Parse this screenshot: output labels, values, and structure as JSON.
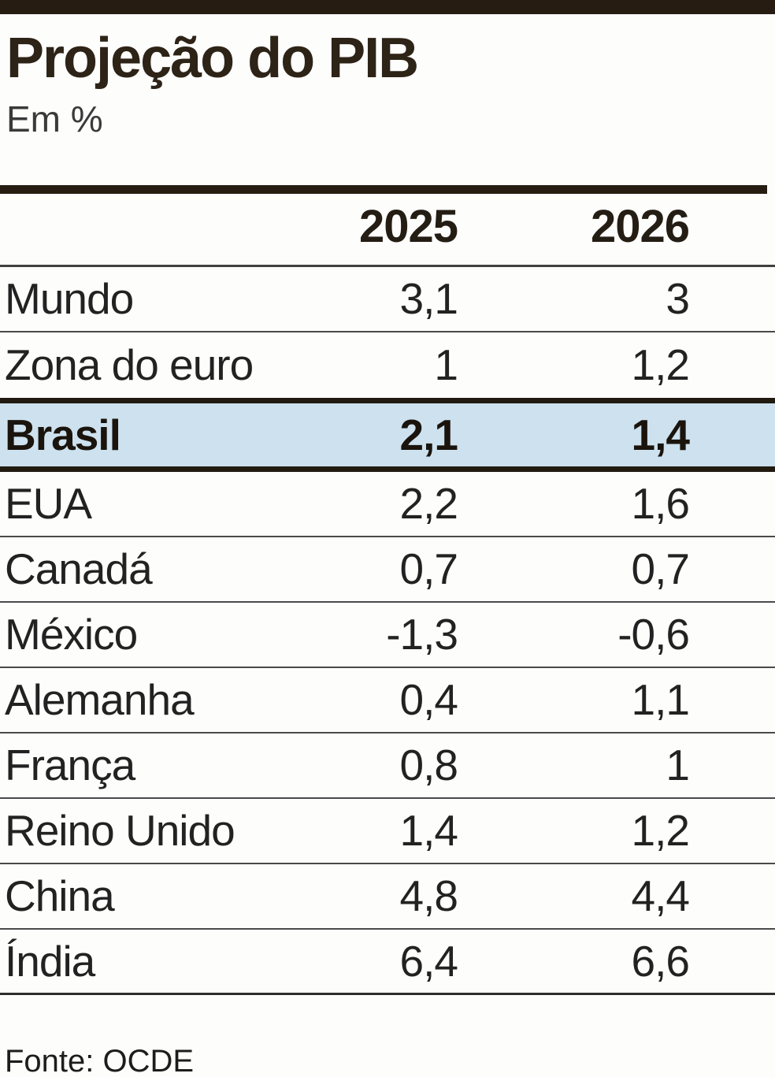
{
  "header": {
    "title": "Projeção do PIB",
    "subtitle": "Em %"
  },
  "table": {
    "columns": [
      "2025",
      "2026"
    ],
    "rows": [
      {
        "label": "Mundo",
        "v2025": "3,1",
        "v2026": "3"
      },
      {
        "label": "Zona do euro",
        "v2025": "1",
        "v2026": "1,2"
      },
      {
        "label": "Brasil",
        "v2025": "2,1",
        "v2026": "1,4",
        "highlight": true
      },
      {
        "label": "EUA",
        "v2025": "2,2",
        "v2026": "1,6"
      },
      {
        "label": "Canadá",
        "v2025": "0,7",
        "v2026": "0,7"
      },
      {
        "label": "México",
        "v2025": "-1,3",
        "v2026": "-0,6"
      },
      {
        "label": "Alemanha",
        "v2025": "0,4",
        "v2026": "1,1"
      },
      {
        "label": "França",
        "v2025": "0,8",
        "v2026": "1"
      },
      {
        "label": "Reino Unido",
        "v2025": "1,4",
        "v2026": "1,2"
      },
      {
        "label": "China",
        "v2025": "4,8",
        "v2026": "4,4"
      },
      {
        "label": "Índia",
        "v2025": "6,4",
        "v2026": "6,6"
      }
    ]
  },
  "footer": {
    "source": "Fonte: OCDE"
  },
  "colors": {
    "accent_dark": "#261c11",
    "highlight_blue": "#cde1ee",
    "separator_gray": "#4a4a4a"
  },
  "chart_data": {
    "type": "table",
    "title": "Projeção do PIB",
    "subtitle": "Em %",
    "unit": "%",
    "categories": [
      "Mundo",
      "Zona do euro",
      "Brasil",
      "EUA",
      "Canadá",
      "México",
      "Alemanha",
      "França",
      "Reino Unido",
      "China",
      "Índia"
    ],
    "series": [
      {
        "name": "2025",
        "values": [
          3.1,
          1,
          2.1,
          2.2,
          0.7,
          -1.3,
          0.4,
          0.8,
          1.4,
          4.8,
          6.4
        ]
      },
      {
        "name": "2026",
        "values": [
          3,
          1.2,
          1.4,
          1.6,
          0.7,
          -0.6,
          1.1,
          1,
          1.2,
          4.4,
          6.6
        ]
      }
    ],
    "highlighted_row": "Brasil",
    "source": "Fonte: OCDE"
  }
}
